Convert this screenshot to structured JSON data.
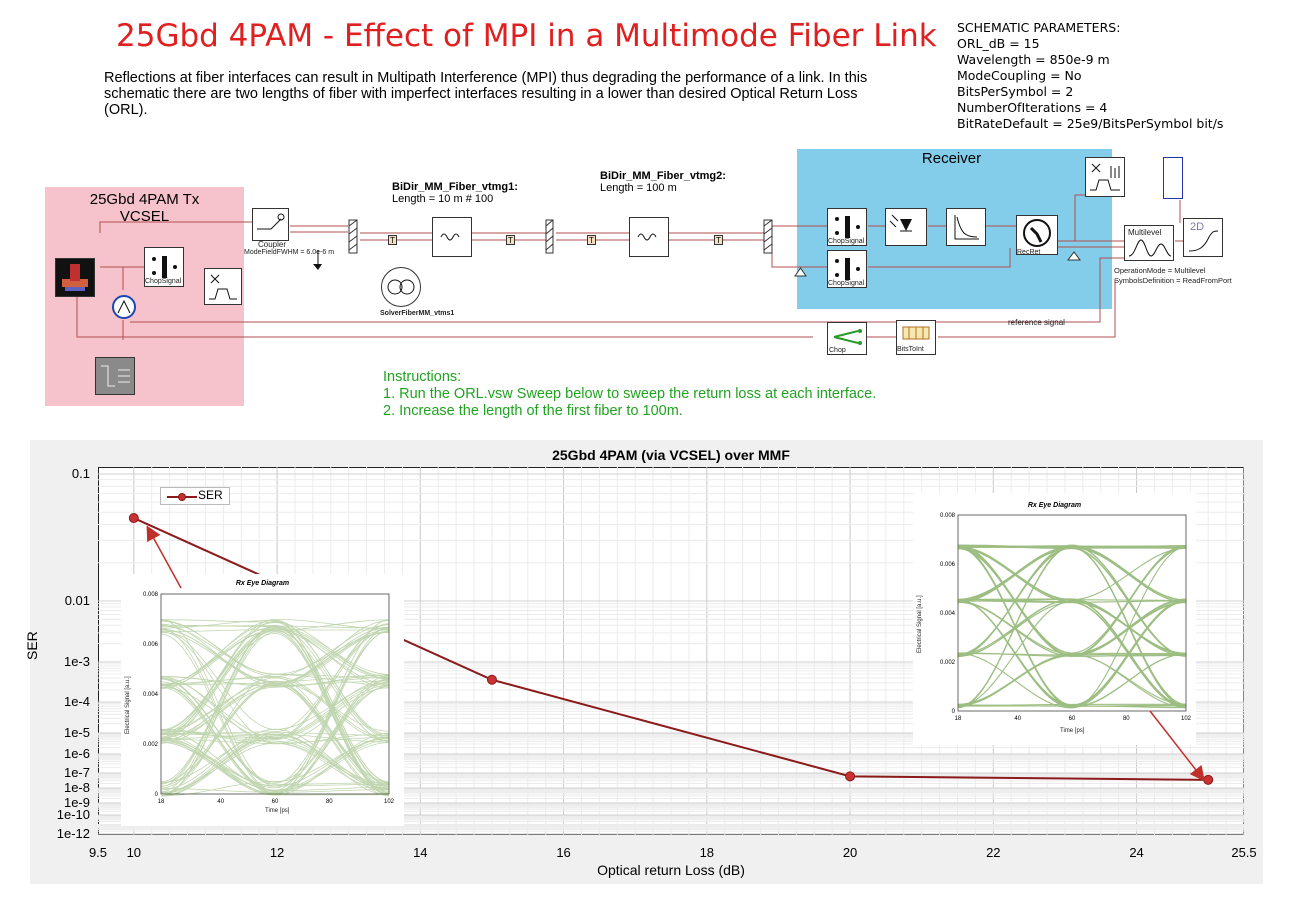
{
  "title": "25Gbd 4PAM - Effect of MPI in a Multimode Fiber Link",
  "description": "Reflections at fiber interfaces can result in Multipath Interference (MPI) thus degrading the performance of a link.  In this schematic there are two lengths of fiber with imperfect interfaces resulting in a lower than desired Optical Return Loss (ORL).",
  "parameters": {
    "header": "SCHEMATIC PARAMETERS:",
    "lines": [
      "ORL_dB = 15",
      "Wavelength = 850e-9 m",
      "ModeCoupling = No",
      "BitsPerSymbol = 2",
      "NumberOfIterations = 4",
      "BitRateDefault = 25e9/BitsPerSymbol bit/s"
    ]
  },
  "schematic": {
    "tx_title_1": "25Gbd 4PAM Tx",
    "tx_title_2": "VCSEL",
    "receiver_title": "Receiver",
    "fiber1_name": "BiDir_MM_Fiber_vtmg1:",
    "fiber1_length": "Length = 10 m # 100",
    "fiber2_name": "BiDir_MM_Fiber_vtmg2:",
    "fiber2_length": "Length = 100 m",
    "coupler_label": "Coupler",
    "mode_field": "ModeFieldFWHM = 6.0e-6 m",
    "chop_signal": "ChopSignal",
    "solver_label": "SolverFiberMM_vtms1",
    "recret_label": "RecRet",
    "multilevel_label": "Multilevel",
    "operation_mode": "OperationMode = Multilevel",
    "symbols_def": "SymbolsDefinition = ReadFromPort",
    "chop_label": "Chop",
    "bits_to_int": "BitsToInt",
    "reference_signal": "reference signal",
    "plot_2d": "2D",
    "t_marker": "T"
  },
  "instructions": {
    "header": "Instructions:",
    "items": [
      "1. Run the ORL.vsw Sweep below to sweep the return loss at each interface.",
      "2. Increase the length of the first fiber to 100m."
    ]
  },
  "colors": {
    "series": "#8b1a1a",
    "eye": "#4e8a1e",
    "title": "#e02020",
    "instructions": "#21a321",
    "tx_bg": "#f6c2cb",
    "rx_bg": "#83cdea"
  },
  "chart_data": {
    "type": "line",
    "title": "25Gbd 4PAM (via VCSEL) over MMF",
    "xlabel": "Optical return Loss (dB)",
    "ylabel": "SER",
    "x_ticks": [
      "9.5",
      "10",
      "12",
      "14",
      "16",
      "18",
      "20",
      "22",
      "24",
      "25.5"
    ],
    "y_ticks": [
      "0.1",
      "0.01",
      "1e-3",
      "1e-4",
      "1e-5",
      "1e-6",
      "1e-7",
      "1e-8",
      "1e-9",
      "1e-10",
      "1e-12"
    ],
    "xlim": [
      9.5,
      25.5
    ],
    "y_scale": "log",
    "grid": true,
    "legend_position": "top-left",
    "series": [
      {
        "name": "SER",
        "x": [
          10,
          15,
          20,
          25
        ],
        "y": [
          0.045,
          0.00036,
          6e-08,
          3.5e-08
        ]
      }
    ]
  },
  "eye_left": {
    "title": "Rx Eye Diagram",
    "ylabel": "Electrical Signal [a.u.]",
    "xlabel": "Time [ps]",
    "y_ticks": [
      "0.008",
      "0.006",
      "0.004",
      "0.002",
      "0"
    ],
    "x_ticks": [
      "18",
      "40",
      "60",
      "80",
      "102"
    ]
  },
  "eye_right": {
    "title": "Rx Eye Diagram",
    "ylabel": "Electrical Signal [a.u.]",
    "xlabel": "Time [ps]",
    "y_ticks": [
      "0.008",
      "0.006",
      "0.004",
      "0.002",
      "0"
    ],
    "x_ticks": [
      "18",
      "40",
      "60",
      "80",
      "102"
    ]
  }
}
